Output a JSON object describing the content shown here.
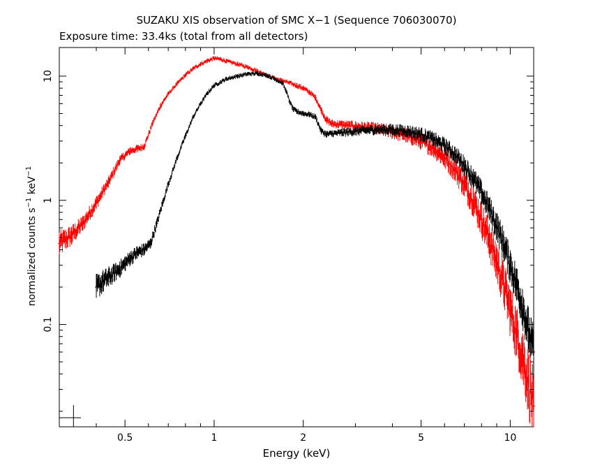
{
  "chart_data": {
    "type": "scatter",
    "title": "SUZAKU XIS observation of SMC X−1 (Sequence 706030070)",
    "subtitle": "Exposure time: 33.4ks (total from all detectors)",
    "xlabel": "Energy (keV)",
    "ylabel": {
      "prefix": "normalized counts s",
      "exp1": "−1",
      "middle": " keV",
      "exp2": "−1"
    },
    "xscale": "log",
    "yscale": "log",
    "xlim": [
      0.3,
      12
    ],
    "ylim": [
      0.015,
      17
    ],
    "x_ticks": [
      {
        "value": 0.5,
        "label": "0.5"
      },
      {
        "value": 1,
        "label": "1"
      },
      {
        "value": 2,
        "label": "2"
      },
      {
        "value": 5,
        "label": "5"
      },
      {
        "value": 10,
        "label": "10"
      }
    ],
    "y_ticks": [
      {
        "value": 0.1,
        "label": "0.1"
      },
      {
        "value": 1,
        "label": "1"
      },
      {
        "value": 10,
        "label": "10"
      }
    ],
    "grid": false,
    "legend": "none",
    "series": [
      {
        "color": "#ff0000",
        "x": [
          0.3,
          0.33,
          0.36,
          0.4,
          0.44,
          0.48,
          0.52,
          0.55,
          0.58,
          0.62,
          0.66,
          0.7,
          0.75,
          0.8,
          0.85,
          0.9,
          0.95,
          1.0,
          1.05,
          1.1,
          1.2,
          1.3,
          1.4,
          1.5,
          1.6,
          1.7,
          1.8,
          1.9,
          2.0,
          2.1,
          2.2,
          2.3,
          2.4,
          2.5,
          2.7,
          3.0,
          3.5,
          4.0,
          4.5,
          5.0,
          5.5,
          6.0,
          6.5,
          7.0,
          7.5,
          8.0,
          8.5,
          9.0,
          9.5,
          10.0,
          10.5,
          11.0,
          11.5,
          12.0
        ],
        "y": [
          0.45,
          0.52,
          0.65,
          0.95,
          1.4,
          2.1,
          2.5,
          2.6,
          2.7,
          4.2,
          5.8,
          7.2,
          8.7,
          10.2,
          11.5,
          12.5,
          13.3,
          13.9,
          13.7,
          13.2,
          12.5,
          11.8,
          11.0,
          10.2,
          9.6,
          9.2,
          8.8,
          8.4,
          8.0,
          7.4,
          6.7,
          5.3,
          4.4,
          4.15,
          4.05,
          3.95,
          3.8,
          3.55,
          3.3,
          3.0,
          2.65,
          2.2,
          1.8,
          1.35,
          1.0,
          0.7,
          0.48,
          0.32,
          0.21,
          0.13,
          0.085,
          0.055,
          0.035,
          0.022
        ],
        "err": [
          0.22,
          0.18,
          0.14,
          0.12,
          0.1,
          0.08,
          0.07,
          0.07,
          0.06,
          0.05,
          0.05,
          0.04,
          0.04,
          0.04,
          0.04,
          0.04,
          0.04,
          0.04,
          0.04,
          0.04,
          0.04,
          0.04,
          0.04,
          0.04,
          0.04,
          0.04,
          0.04,
          0.05,
          0.05,
          0.05,
          0.05,
          0.06,
          0.07,
          0.07,
          0.08,
          0.09,
          0.1,
          0.12,
          0.13,
          0.15,
          0.17,
          0.19,
          0.22,
          0.25,
          0.28,
          0.31,
          0.35,
          0.38,
          0.42,
          0.46,
          0.5,
          0.55,
          0.6,
          0.65
        ]
      },
      {
        "color": "#000000",
        "x": [
          0.4,
          0.42,
          0.44,
          0.46,
          0.48,
          0.5,
          0.52,
          0.55,
          0.58,
          0.61,
          0.64,
          0.67,
          0.7,
          0.75,
          0.8,
          0.85,
          0.9,
          0.95,
          1.0,
          1.1,
          1.2,
          1.3,
          1.4,
          1.5,
          1.6,
          1.7,
          1.75,
          1.8,
          1.85,
          1.9,
          2.0,
          2.1,
          2.2,
          2.3,
          2.4,
          2.5,
          2.7,
          3.0,
          3.5,
          4.0,
          4.5,
          5.0,
          5.5,
          6.0,
          6.5,
          7.0,
          7.5,
          8.0,
          8.5,
          9.0,
          9.5,
          10.0,
          10.5,
          11.0,
          11.5,
          12.0
        ],
        "y": [
          0.2,
          0.22,
          0.24,
          0.26,
          0.28,
          0.31,
          0.34,
          0.38,
          0.4,
          0.45,
          0.65,
          0.95,
          1.35,
          2.2,
          3.3,
          4.7,
          6.0,
          7.3,
          8.4,
          9.5,
          10.0,
          10.4,
          10.5,
          10.2,
          9.5,
          8.8,
          7.6,
          6.2,
          5.4,
          5.2,
          5.0,
          4.9,
          4.7,
          3.6,
          3.4,
          3.45,
          3.5,
          3.6,
          3.7,
          3.7,
          3.6,
          3.4,
          3.1,
          2.75,
          2.35,
          1.9,
          1.5,
          1.15,
          0.85,
          0.62,
          0.44,
          0.3,
          0.21,
          0.14,
          0.09,
          0.06
        ],
        "err": [
          0.22,
          0.2,
          0.18,
          0.16,
          0.15,
          0.14,
          0.13,
          0.12,
          0.11,
          0.1,
          0.08,
          0.07,
          0.06,
          0.05,
          0.05,
          0.04,
          0.04,
          0.04,
          0.04,
          0.04,
          0.04,
          0.04,
          0.04,
          0.04,
          0.04,
          0.04,
          0.04,
          0.04,
          0.05,
          0.05,
          0.05,
          0.05,
          0.05,
          0.06,
          0.06,
          0.06,
          0.07,
          0.08,
          0.09,
          0.1,
          0.11,
          0.12,
          0.13,
          0.14,
          0.15,
          0.17,
          0.19,
          0.21,
          0.23,
          0.26,
          0.29,
          0.32,
          0.35,
          0.38,
          0.42,
          0.46
        ]
      }
    ]
  }
}
